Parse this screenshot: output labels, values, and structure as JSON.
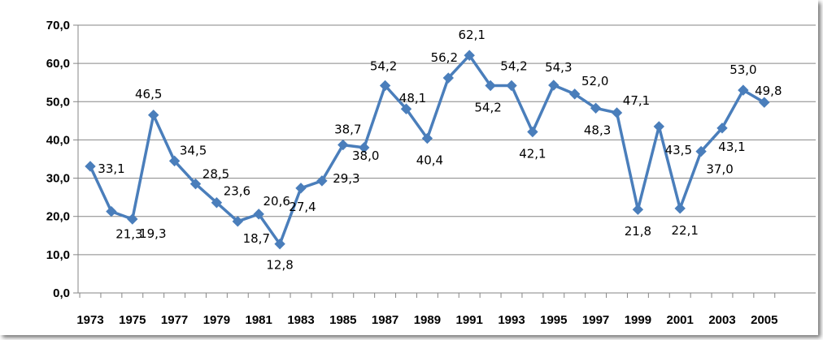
{
  "chart_data": {
    "type": "line",
    "title": "",
    "xlabel": "",
    "ylabel": "",
    "ylim": [
      0,
      70
    ],
    "yticks": [
      "0,0",
      "10,0",
      "20,0",
      "30,0",
      "40,0",
      "50,0",
      "60,0",
      "70,0"
    ],
    "x": [
      1973,
      1974,
      1975,
      1976,
      1977,
      1978,
      1979,
      1980,
      1981,
      1982,
      1983,
      1984,
      1985,
      1986,
      1987,
      1988,
      1989,
      1990,
      1991,
      1992,
      1993,
      1994,
      1995,
      1996,
      1997,
      1998,
      1999,
      2000,
      2001,
      2002,
      2003,
      2004,
      2005
    ],
    "xtick_labels": [
      "1973",
      "1975",
      "1977",
      "1979",
      "1981",
      "1983",
      "1985",
      "1987",
      "1989",
      "1991",
      "1993",
      "1995",
      "1997",
      "1999",
      "2001",
      "2003",
      "2005"
    ],
    "series": [
      {
        "color": "#4A7EBB",
        "values": [
          33.1,
          21.3,
          19.3,
          46.5,
          34.5,
          28.5,
          23.6,
          18.7,
          20.6,
          12.8,
          27.4,
          29.3,
          38.7,
          38.0,
          54.2,
          48.1,
          40.4,
          56.2,
          62.1,
          54.2,
          54.2,
          42.1,
          54.3,
          52.0,
          48.3,
          47.1,
          21.8,
          43.5,
          22.1,
          37.0,
          43.1,
          53.0,
          49.8
        ],
        "data_labels": [
          "33,1",
          "21,3",
          "19,3",
          "46,5",
          "34,5",
          "28,5",
          "23,6",
          "18,7",
          "20,6",
          "12,8",
          "27,4",
          "29,3",
          "38,7",
          "38,0",
          "54,2",
          "48,1",
          "40,4",
          "56,2",
          "62,1",
          "54,2",
          "54,2",
          "42,1",
          "54,3",
          "52,0",
          "48,3",
          "47,1",
          "21,8",
          "43,5",
          "22,1",
          "37,0",
          "43,1",
          "53,0",
          "49,8"
        ]
      }
    ],
    "grid": true,
    "legend": "none",
    "marker": "diamond"
  }
}
